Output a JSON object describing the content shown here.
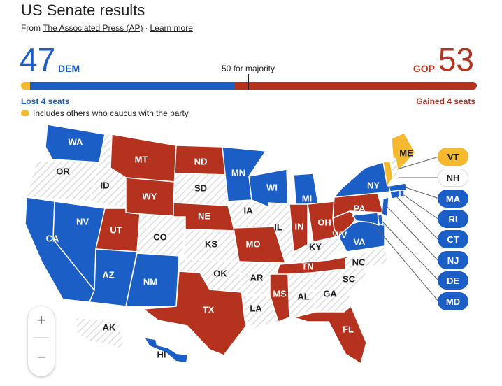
{
  "title": "US Senate results",
  "source": {
    "prefix": "From",
    "link": "The Associated Press (AP)",
    "separator": "·",
    "learn_more": "Learn more"
  },
  "tally": {
    "dem": {
      "count": "47",
      "label": "DEM",
      "change": "Lost 4 seats",
      "color": "#1b5ec6"
    },
    "gop": {
      "count": "53",
      "label": "GOP",
      "change": "Gained 4 seats",
      "color": "#b5321f"
    },
    "majority_label": "50 for majority",
    "others_note": "Includes others who caucus with the party",
    "others_color": "#f4b92e",
    "bar": {
      "others": 2,
      "dem": 45,
      "gop": 53
    }
  },
  "colors": {
    "dem": "#1b5ec6",
    "gop": "#b5321f",
    "other": "#f4b92e",
    "none": "#ebebeb"
  },
  "states": [
    {
      "abbr": "WA",
      "party": "dem"
    },
    {
      "abbr": "OR",
      "party": "none"
    },
    {
      "abbr": "CA",
      "party": "dem"
    },
    {
      "abbr": "NV",
      "party": "dem"
    },
    {
      "abbr": "ID",
      "party": "none"
    },
    {
      "abbr": "MT",
      "party": "gop"
    },
    {
      "abbr": "WY",
      "party": "gop"
    },
    {
      "abbr": "UT",
      "party": "gop"
    },
    {
      "abbr": "AZ",
      "party": "dem"
    },
    {
      "abbr": "CO",
      "party": "none"
    },
    {
      "abbr": "NM",
      "party": "dem"
    },
    {
      "abbr": "ND",
      "party": "gop"
    },
    {
      "abbr": "SD",
      "party": "none"
    },
    {
      "abbr": "NE",
      "party": "gop"
    },
    {
      "abbr": "KS",
      "party": "none"
    },
    {
      "abbr": "OK",
      "party": "none"
    },
    {
      "abbr": "TX",
      "party": "gop"
    },
    {
      "abbr": "MN",
      "party": "dem"
    },
    {
      "abbr": "IA",
      "party": "none"
    },
    {
      "abbr": "MO",
      "party": "gop"
    },
    {
      "abbr": "AR",
      "party": "none"
    },
    {
      "abbr": "LA",
      "party": "none"
    },
    {
      "abbr": "WI",
      "party": "dem"
    },
    {
      "abbr": "IL",
      "party": "none"
    },
    {
      "abbr": "MI",
      "party": "dem"
    },
    {
      "abbr": "IN",
      "party": "gop"
    },
    {
      "abbr": "OH",
      "party": "gop"
    },
    {
      "abbr": "KY",
      "party": "none"
    },
    {
      "abbr": "TN",
      "party": "gop"
    },
    {
      "abbr": "MS",
      "party": "gop"
    },
    {
      "abbr": "AL",
      "party": "none"
    },
    {
      "abbr": "GA",
      "party": "none"
    },
    {
      "abbr": "FL",
      "party": "gop"
    },
    {
      "abbr": "SC",
      "party": "none"
    },
    {
      "abbr": "NC",
      "party": "none"
    },
    {
      "abbr": "VA",
      "party": "dem"
    },
    {
      "abbr": "WV",
      "party": "gop"
    },
    {
      "abbr": "PA",
      "party": "gop"
    },
    {
      "abbr": "NY",
      "party": "dem"
    },
    {
      "abbr": "ME",
      "party": "other"
    },
    {
      "abbr": "AK",
      "party": "none"
    },
    {
      "abbr": "HI",
      "party": "dem"
    }
  ],
  "small_states": [
    {
      "abbr": "VT",
      "party": "other"
    },
    {
      "abbr": "NH",
      "party": "none"
    },
    {
      "abbr": "MA",
      "party": "dem"
    },
    {
      "abbr": "RI",
      "party": "dem"
    },
    {
      "abbr": "CT",
      "party": "dem"
    },
    {
      "abbr": "NJ",
      "party": "dem"
    },
    {
      "abbr": "DE",
      "party": "dem"
    },
    {
      "abbr": "MD",
      "party": "dem"
    }
  ],
  "zoom": {
    "in_label": "+",
    "out_label": "−"
  }
}
